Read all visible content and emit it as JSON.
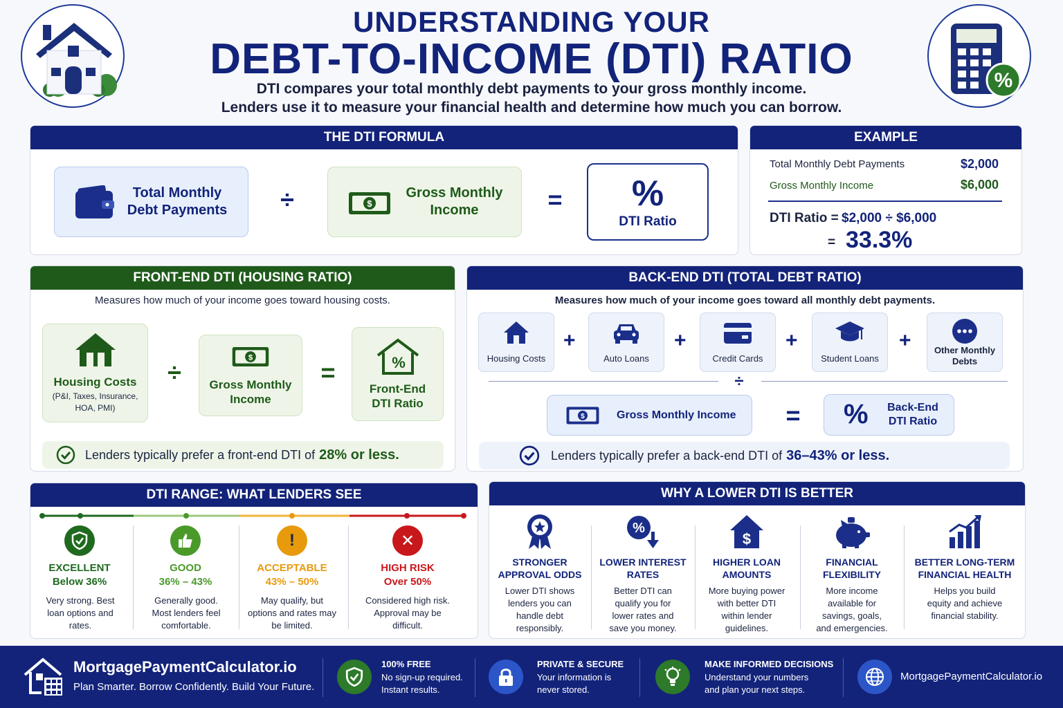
{
  "header": {
    "title_line1": "UNDERSTANDING YOUR",
    "title_line2": "DEBT-TO-INCOME (DTI) RATIO",
    "subtitle_line1": "DTI compares your total monthly debt payments to your gross monthly income.",
    "subtitle_line2": "Lenders use it to measure your financial health and determine how much you can borrow."
  },
  "formula": {
    "heading": "THE DTI FORMULA",
    "term1": "Total Monthly Debt Payments",
    "divide": "÷",
    "term2": "Gross Monthly Income",
    "equals": "=",
    "result_symbol": "%",
    "result": "DTI Ratio"
  },
  "example": {
    "heading": "EXAMPLE",
    "row1_label": "Total Monthly Debt Payments",
    "row1_value": "$2,000",
    "row2_label": "Gross Monthly Income",
    "row2_value": "$6,000",
    "calc_label": "DTI Ratio =",
    "calc_expr": "$2,000 ÷ $6,000",
    "eq": "=",
    "result": "33.3%"
  },
  "front_end": {
    "heading": "FRONT-END DTI (HOUSING RATIO)",
    "description": "Measures how much of your income goes toward housing costs.",
    "term1": "Housing Costs",
    "term1_detail": "(P&I, Taxes, Insurance, HOA, PMI)",
    "term2": "Gross Monthly Income",
    "result": "Front-End DTI Ratio",
    "note_prefix": "Lenders typically prefer a front-end DTI of",
    "note_value": "28% or less."
  },
  "back_end": {
    "heading": "BACK-END DTI (TOTAL DEBT RATIO)",
    "description": "Measures how much of your income goes toward all monthly debt payments.",
    "debts": [
      "Housing Costs",
      "Auto Loans",
      "Credit Cards",
      "Student Loans",
      "Other Monthly Debts"
    ],
    "plus": "+",
    "divide": "÷",
    "income": "Gross Monthly Income",
    "equals": "=",
    "result_symbol": "%",
    "result": "Back-End DTI Ratio",
    "note_prefix": "Lenders typically prefer a back-end DTI of",
    "note_value": "36–43% or less."
  },
  "ranges": {
    "heading": "DTI RANGE: WHAT LENDERS SEE",
    "items": [
      {
        "title": "EXCELLENT",
        "range": "Below 36%",
        "desc": "Very strong. Best loan options and rates.",
        "color": "#1f6a1f"
      },
      {
        "title": "GOOD",
        "range": "36% – 43%",
        "desc": "Generally good. Most lenders feel comfortable.",
        "color": "#4a9a2a"
      },
      {
        "title": "ACCEPTABLE",
        "range": "43% – 50%",
        "desc": "May qualify, but options and rates may be limited.",
        "color": "#e79a0c"
      },
      {
        "title": "HIGH RISK",
        "range": "Over 50%",
        "desc": "Considered high risk. Approval may be difficult.",
        "color": "#c8181c"
      }
    ]
  },
  "why": {
    "heading": "WHY A LOWER DTI IS BETTER",
    "items": [
      {
        "title": "STRONGER APPROVAL ODDS",
        "desc": "Lower DTI shows lenders you can handle debt responsibly.",
        "icon": "ribbon-icon"
      },
      {
        "title": "LOWER INTEREST RATES",
        "desc": "Better DTI can qualify you for lower rates and save you money.",
        "icon": "percent-down-icon"
      },
      {
        "title": "HIGHER LOAN AMOUNTS",
        "desc": "More buying power with better DTI within lender guidelines.",
        "icon": "house-dollar-icon"
      },
      {
        "title": "FINANCIAL FLEXIBILITY",
        "desc": "More income available for savings, goals, and emergencies.",
        "icon": "piggy-bank-icon"
      },
      {
        "title": "BETTER LONG-TERM FINANCIAL HEALTH",
        "desc": "Helps you build equity and achieve financial stability.",
        "icon": "growth-chart-icon"
      }
    ]
  },
  "footer": {
    "brand": "MortgagePaymentCalculator.io",
    "tagline": "Plan Smarter. Borrow Confidently. Build Your Future.",
    "f1_head": "100% FREE",
    "f1_desc": "No sign-up required. Instant results.",
    "f2_head": "PRIVATE & SECURE",
    "f2_desc": "Your information is never stored.",
    "f3_head": "MAKE INFORMED DECISIONS",
    "f3_desc": "Understand your numbers and plan your next steps.",
    "site": "MortgagePaymentCalculator.io"
  },
  "colors": {
    "navy": "#13237a",
    "green": "#1f5a1a",
    "excellent": "#1f6a1f",
    "good": "#4a9a2a",
    "acceptable": "#e79a0c",
    "high_risk": "#c8181c"
  }
}
